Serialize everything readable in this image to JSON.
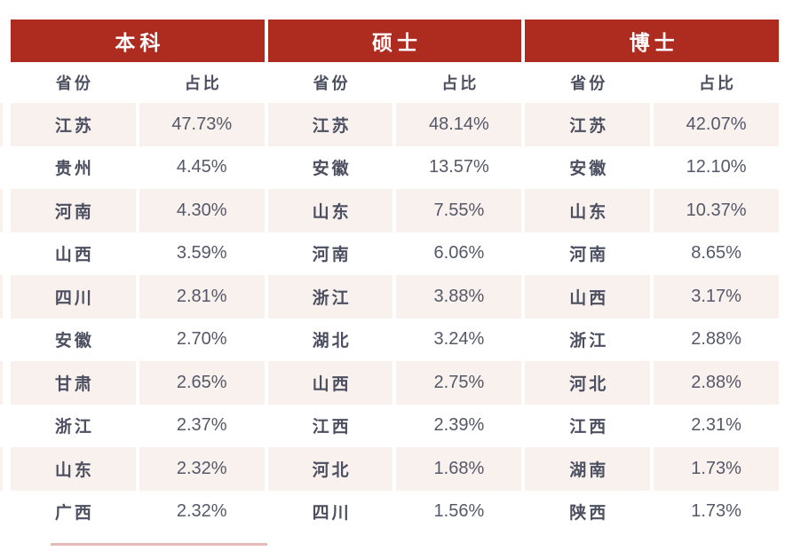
{
  "chart_data": {
    "type": "table",
    "sections": [
      {
        "title": "本科",
        "columns": [
          "省份",
          "占比"
        ],
        "rows": [
          [
            "江苏",
            "47.73%"
          ],
          [
            "贵州",
            "4.45%"
          ],
          [
            "河南",
            "4.30%"
          ],
          [
            "山西",
            "3.59%"
          ],
          [
            "四川",
            "2.81%"
          ],
          [
            "安徽",
            "2.70%"
          ],
          [
            "甘肃",
            "2.65%"
          ],
          [
            "浙江",
            "2.37%"
          ],
          [
            "山东",
            "2.32%"
          ],
          [
            "广西",
            "2.32%"
          ]
        ]
      },
      {
        "title": "硕士",
        "columns": [
          "省份",
          "占比"
        ],
        "rows": [
          [
            "江苏",
            "48.14%"
          ],
          [
            "安徽",
            "13.57%"
          ],
          [
            "山东",
            "7.55%"
          ],
          [
            "河南",
            "6.06%"
          ],
          [
            "浙江",
            "3.88%"
          ],
          [
            "湖北",
            "3.24%"
          ],
          [
            "山西",
            "2.75%"
          ],
          [
            "江西",
            "2.39%"
          ],
          [
            "河北",
            "1.68%"
          ],
          [
            "四川",
            "1.56%"
          ]
        ]
      },
      {
        "title": "博士",
        "columns": [
          "省份",
          "占比"
        ],
        "rows": [
          [
            "江苏",
            "42.07%"
          ],
          [
            "安徽",
            "12.10%"
          ],
          [
            "山东",
            "10.37%"
          ],
          [
            "河南",
            "8.65%"
          ],
          [
            "山西",
            "3.17%"
          ],
          [
            "浙江",
            "2.88%"
          ],
          [
            "河北",
            "2.88%"
          ],
          [
            "江西",
            "2.31%"
          ],
          [
            "湖南",
            "1.73%"
          ],
          [
            "陕西",
            "1.73%"
          ]
        ]
      }
    ]
  },
  "style": {
    "accent_color": "#ae2b20",
    "stripe_color": "#f8f1ee",
    "header_text_color": "#ffffff",
    "province_text_color": "#4c4f60",
    "value_text_color": "#555868"
  }
}
